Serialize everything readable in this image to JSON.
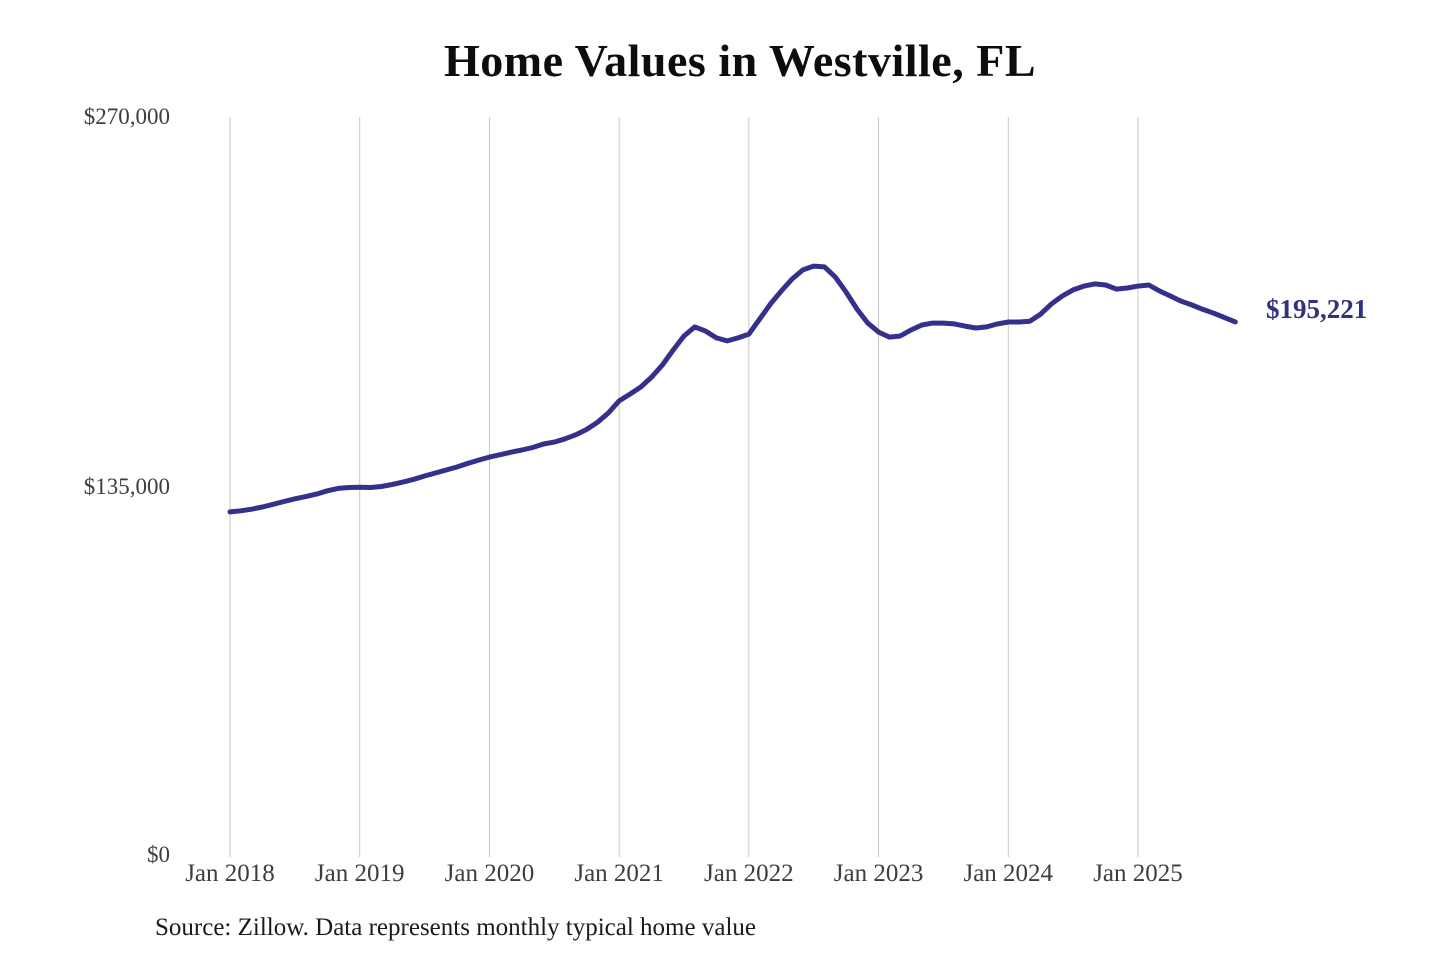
{
  "title": "Home Values in Westville, FL",
  "end_label": "$195,221",
  "source_note": "Source: Zillow. Data represents monthly typical home value",
  "colors": {
    "line": "#34308c",
    "end_label": "#2f3280",
    "gridline": "#c7c7c7",
    "axis_text": "#3d3d3d",
    "title_text": "#0d0d0d"
  },
  "chart_data": {
    "type": "line",
    "title": "Home Values in Westville, FL",
    "xlabel": "",
    "ylabel": "",
    "ylim": [
      0,
      270000
    ],
    "grid": "vertical-only",
    "legend": "none",
    "y_tick_labels": [
      "$270,000",
      "$135,000",
      "$0"
    ],
    "y_tick_values": [
      270000,
      135000,
      0
    ],
    "x_tick_labels": [
      "Jan 2018",
      "Jan 2019",
      "Jan 2020",
      "Jan 2021",
      "Jan 2022",
      "Jan 2023",
      "Jan 2024",
      "Jan 2025"
    ],
    "final_value": 195221,
    "final_value_label": "$195,221",
    "series": [
      {
        "name": "Monthly typical home value",
        "start_month": "2018-01",
        "end_month": "2025-10",
        "values": [
          125900,
          126300,
          126900,
          127700,
          128700,
          129700,
          130700,
          131500,
          132400,
          133600,
          134500,
          134800,
          134900,
          134800,
          135200,
          135900,
          136800,
          137800,
          139000,
          140100,
          141200,
          142300,
          143600,
          144800,
          145900,
          146800,
          147700,
          148500,
          149400,
          150700,
          151400,
          152600,
          154100,
          156000,
          158600,
          162000,
          166400,
          168900,
          171500,
          175100,
          179500,
          185000,
          190100,
          193400,
          191900,
          189400,
          188300,
          189400,
          190800,
          196300,
          201800,
          206500,
          210900,
          214200,
          215600,
          215300,
          211600,
          206100,
          199900,
          194800,
          191500,
          189700,
          190100,
          192300,
          194100,
          194800,
          194800,
          194500,
          193700,
          193000,
          193400,
          194500,
          195200,
          195200,
          195500,
          198100,
          201800,
          204700,
          206900,
          208300,
          209100,
          208700,
          207200,
          207600,
          208300,
          208700,
          206500,
          204700,
          202800,
          201400,
          199800,
          198400,
          196800,
          195221
        ]
      }
    ]
  }
}
